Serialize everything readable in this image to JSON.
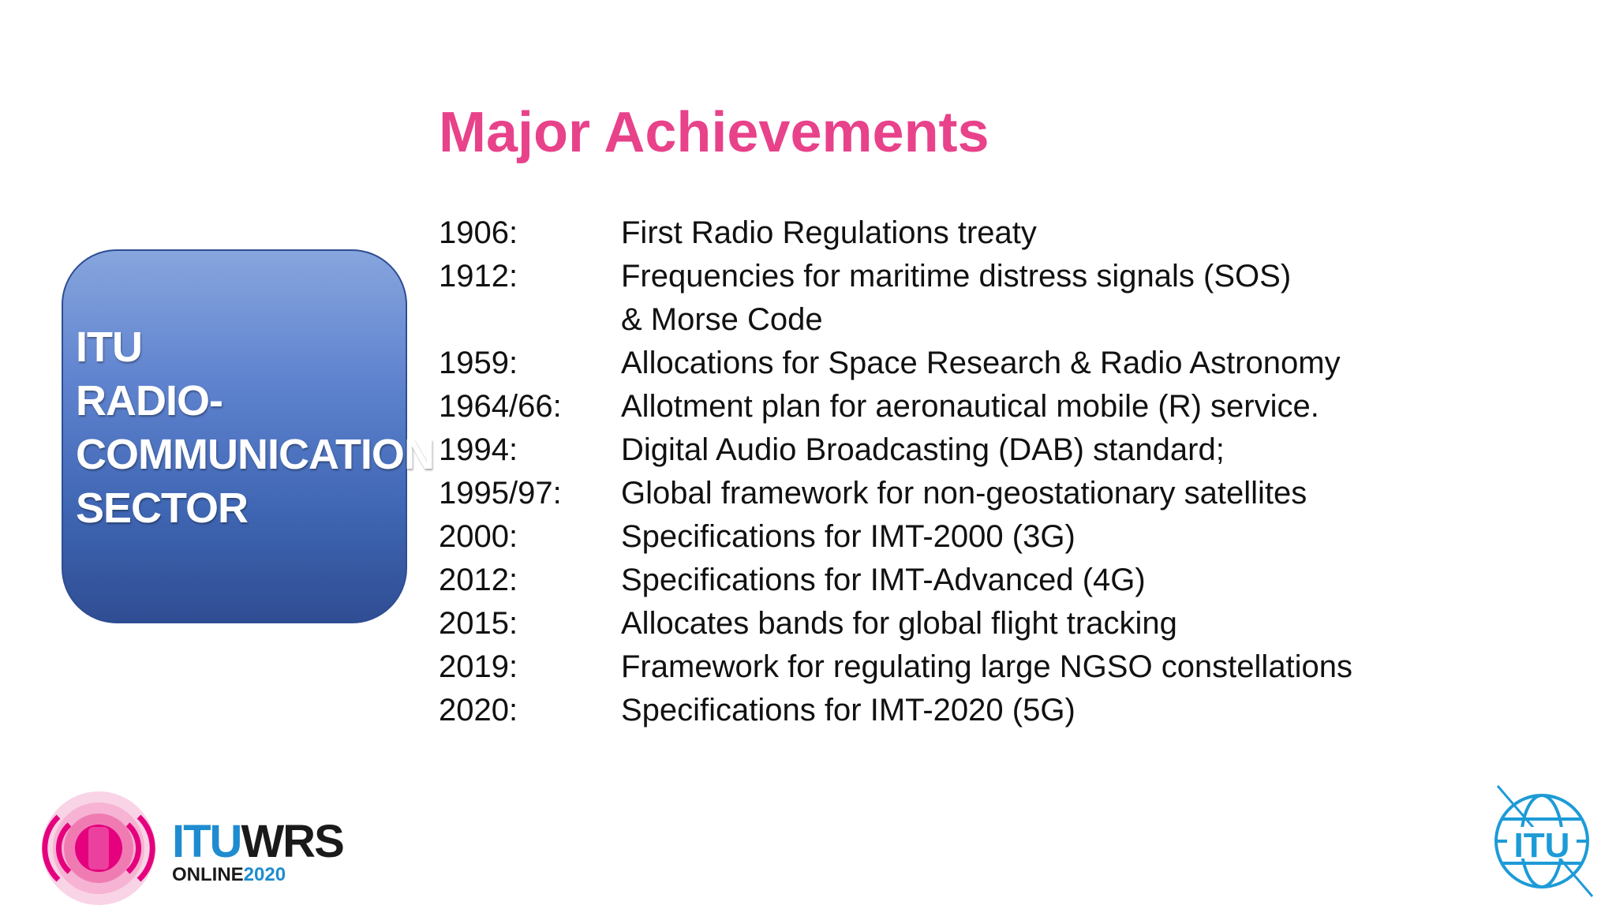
{
  "title": "Major Achievements",
  "sector_box": {
    "label": "ITU\nRADIO-\nCOMMUNICATION\nSECTOR"
  },
  "achievements": [
    {
      "year": "1906:",
      "text": "First Radio Regulations treaty"
    },
    {
      "year": "1912:",
      "text": "Frequencies for maritime distress signals (SOS)"
    },
    {
      "year": "",
      "text": "& Morse Code"
    },
    {
      "year": "1959:",
      "text": "Allocations for Space Research & Radio Astronomy"
    },
    {
      "year": "1964/66:",
      "text": "Allotment plan for aeronautical mobile (R) service."
    },
    {
      "year": "1994:",
      "text": "Digital Audio Broadcasting (DAB) standard;"
    },
    {
      "year": "1995/97:",
      "text": "Global framework for non-geostationary satellites"
    },
    {
      "year": "2000:",
      "text": "Specifications for IMT-2000 (3G)"
    },
    {
      "year": "2012:",
      "text": "Specifications for IMT-Advanced (4G)"
    },
    {
      "year": "2015:",
      "text": "Allocates bands for global flight tracking"
    },
    {
      "year": "2019:",
      "text": "Framework for regulating large NGSO constellations"
    },
    {
      "year": "2020:",
      "text": "Specifications for IMT-2020 (5G)"
    }
  ],
  "wrs_logo": {
    "itu": "ITU",
    "wrs": "WRS",
    "online": "ONLINE",
    "year": "2020",
    "colors": {
      "pink": "#e5007e",
      "blue": "#1f8ccf",
      "dark": "#1a1a1a"
    }
  },
  "itu_logo": {
    "text": "ITU",
    "color": "#1d9bd7"
  },
  "colors": {
    "title": "#e8428a",
    "box_top": "#87a5dd",
    "box_bottom": "#2f4d93"
  }
}
